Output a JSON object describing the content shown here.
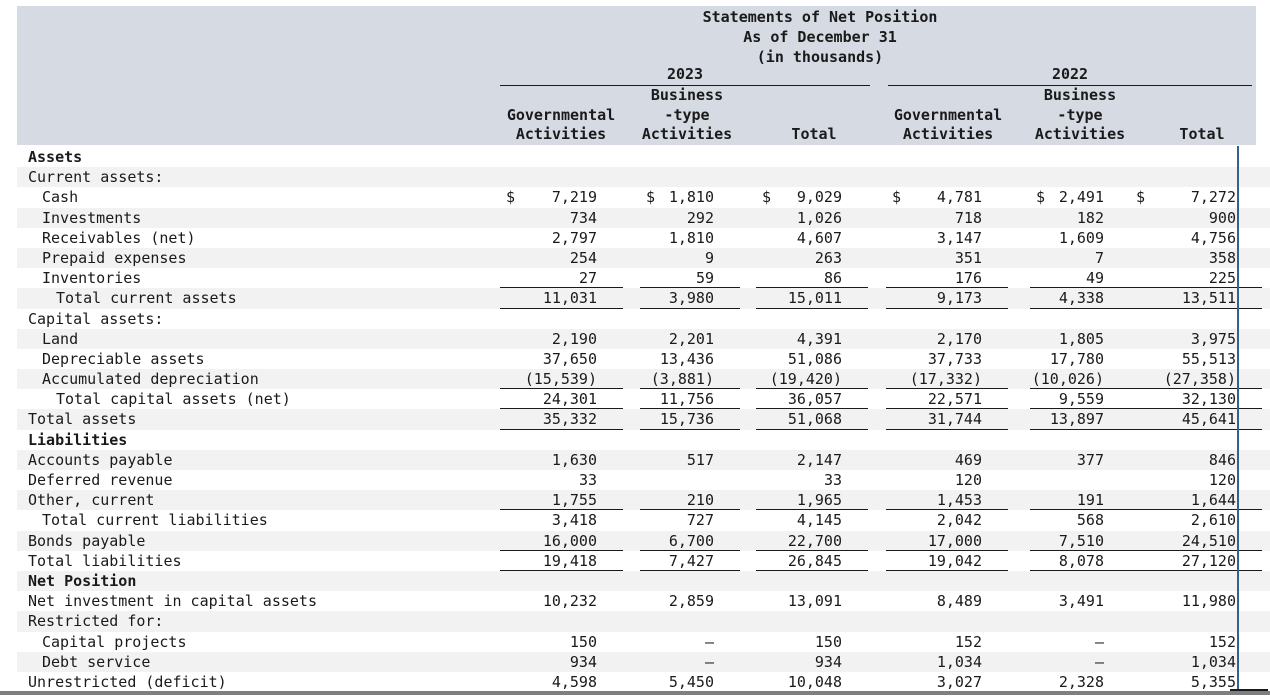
{
  "title": {
    "line1": "Statements of Net Position",
    "line2": "As of December 31",
    "line3": "(in thousands)"
  },
  "currency_symbol": "$",
  "colors": {
    "header_band": "#d5dae3",
    "zebra_stripe": "#f2f2f2",
    "text": "#1a1a1a",
    "marker_line_blue": "#35618e",
    "bottom_border_gray": "#7f7f7f"
  },
  "groups": [
    {
      "year": "2023",
      "columns": [
        [
          "Governmental",
          "Activities"
        ],
        [
          "Business",
          "-type",
          "Activities"
        ],
        [
          "Total"
        ]
      ]
    },
    {
      "year": "2022",
      "columns": [
        [
          "Governmental",
          "Activities"
        ],
        [
          "Business",
          "-type",
          "Activities"
        ],
        [
          "Total"
        ]
      ]
    }
  ],
  "rows": [
    {
      "label": "Assets",
      "indent": 0,
      "bold": true,
      "values": [
        "",
        "",
        "",
        "",
        "",
        ""
      ]
    },
    {
      "label": "Current assets:",
      "indent": 0,
      "values": [
        "",
        "",
        "",
        "",
        "",
        ""
      ]
    },
    {
      "label": "Cash",
      "indent": 1,
      "dollar": true,
      "values": [
        "7,219",
        "1,810",
        "9,029",
        "4,781",
        "2,491",
        "7,272"
      ]
    },
    {
      "label": "Investments",
      "indent": 1,
      "values": [
        "734",
        "292",
        "1,026",
        "718",
        "182",
        "900"
      ]
    },
    {
      "label": "Receivables (net)",
      "indent": 1,
      "values": [
        "2,797",
        "1,810",
        "4,607",
        "3,147",
        "1,609",
        "4,756"
      ]
    },
    {
      "label": "Prepaid expenses",
      "indent": 1,
      "values": [
        "254",
        "9",
        "263",
        "351",
        "7",
        "358"
      ]
    },
    {
      "label": "Inventories",
      "indent": 1,
      "underline": true,
      "values": [
        "27",
        "59",
        "86",
        "176",
        "49",
        "225"
      ]
    },
    {
      "label": "Total current assets",
      "indent": 2,
      "underline": true,
      "values": [
        "11,031",
        "3,980",
        "15,011",
        "9,173",
        "4,338",
        "13,511"
      ]
    },
    {
      "label": "Capital assets:",
      "indent": 0,
      "values": [
        "",
        "",
        "",
        "",
        "",
        ""
      ]
    },
    {
      "label": "Land",
      "indent": 1,
      "values": [
        "2,190",
        "2,201",
        "4,391",
        "2,170",
        "1,805",
        "3,975"
      ]
    },
    {
      "label": "Depreciable assets",
      "indent": 1,
      "values": [
        "37,650",
        "13,436",
        "51,086",
        "37,733",
        "17,780",
        "55,513"
      ]
    },
    {
      "label": "Accumulated depreciation",
      "indent": 1,
      "underline": true,
      "values": [
        "(15,539)",
        "(3,881)",
        "(19,420)",
        "(17,332)",
        "(10,026)",
        "(27,358)"
      ]
    },
    {
      "label": "Total capital assets (net)",
      "indent": 2,
      "underline": true,
      "values": [
        "24,301",
        "11,756",
        "36,057",
        "22,571",
        "9,559",
        "32,130"
      ]
    },
    {
      "label": "Total assets",
      "indent": 0,
      "underline": true,
      "values": [
        "35,332",
        "15,736",
        "51,068",
        "31,744",
        "13,897",
        "45,641"
      ]
    },
    {
      "label": "Liabilities",
      "indent": 0,
      "bold": true,
      "values": [
        "",
        "",
        "",
        "",
        "",
        ""
      ]
    },
    {
      "label": "Accounts payable",
      "indent": 0,
      "values": [
        "1,630",
        "517",
        "2,147",
        "469",
        "377",
        "846"
      ]
    },
    {
      "label": "Deferred revenue",
      "indent": 0,
      "values": [
        "33",
        "",
        "33",
        "120",
        "",
        "120"
      ]
    },
    {
      "label": "Other, current",
      "indent": 0,
      "underline": true,
      "values": [
        "1,755",
        "210",
        "1,965",
        "1,453",
        "191",
        "1,644"
      ]
    },
    {
      "label": "Total current liabilities",
      "indent": 1,
      "values": [
        "3,418",
        "727",
        "4,145",
        "2,042",
        "568",
        "2,610"
      ]
    },
    {
      "label": "Bonds payable",
      "indent": 0,
      "underline": true,
      "values": [
        "16,000",
        "6,700",
        "22,700",
        "17,000",
        "7,510",
        "24,510"
      ]
    },
    {
      "label": "Total liabilities",
      "indent": 0,
      "underline": true,
      "values": [
        "19,418",
        "7,427",
        "26,845",
        "19,042",
        "8,078",
        "27,120"
      ]
    },
    {
      "label": "Net Position",
      "indent": 0,
      "bold": true,
      "values": [
        "",
        "",
        "",
        "",
        "",
        ""
      ]
    },
    {
      "label": "Net investment in capital assets",
      "indent": 0,
      "values": [
        "10,232",
        "2,859",
        "13,091",
        "8,489",
        "3,491",
        "11,980"
      ]
    },
    {
      "label": "Restricted for:",
      "indent": 0,
      "values": [
        "",
        "",
        "",
        "",
        "",
        ""
      ]
    },
    {
      "label": "Capital projects",
      "indent": 1,
      "values": [
        "150",
        "—",
        "150",
        "152",
        "—",
        "152"
      ]
    },
    {
      "label": "Debt service",
      "indent": 1,
      "values": [
        "934",
        "—",
        "934",
        "1,034",
        "—",
        "1,034"
      ]
    },
    {
      "label": "Unrestricted (deficit)",
      "indent": 0,
      "values": [
        "4,598",
        "5,450",
        "10,048",
        "3,027",
        "2,328",
        "5,355"
      ]
    }
  ]
}
